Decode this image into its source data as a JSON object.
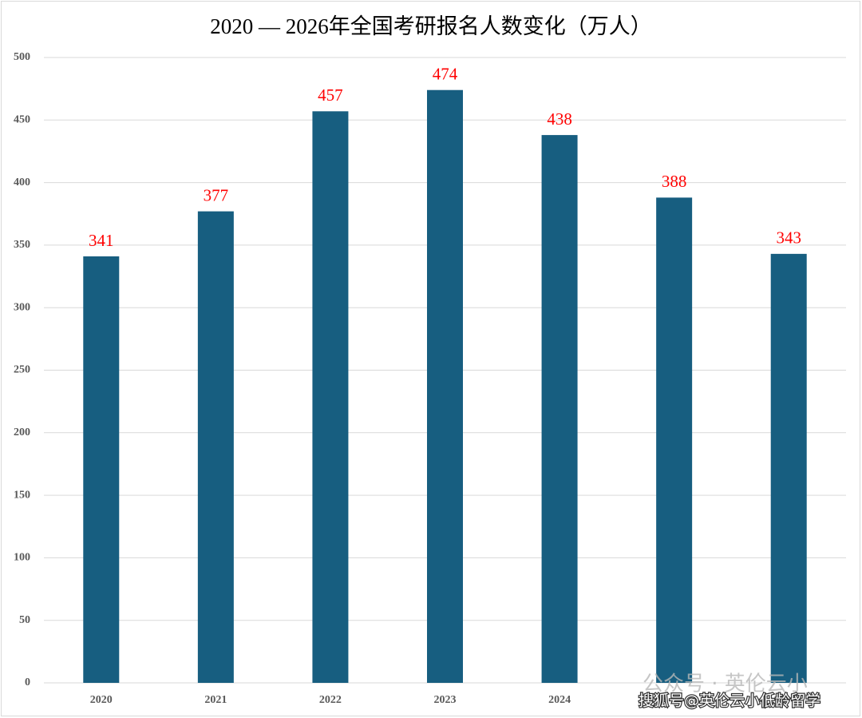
{
  "chart_data": {
    "type": "bar",
    "title": "2020 — 2026年全国考研报名人数变化（万人）",
    "categories": [
      "2020",
      "2021",
      "2022",
      "2023",
      "2024",
      null,
      null
    ],
    "values": [
      341,
      377,
      457,
      474,
      438,
      388,
      343
    ],
    "color": "#175e80",
    "label_color": "#ff0000",
    "ylim": [
      0,
      500
    ],
    "yticks": [
      0,
      50,
      100,
      150,
      200,
      250,
      300,
      350,
      400,
      450,
      500
    ],
    "grid": true
  },
  "watermarks": [
    "公众号 · 英伦云小",
    "搜狐号@英伦云小低龄留学"
  ]
}
